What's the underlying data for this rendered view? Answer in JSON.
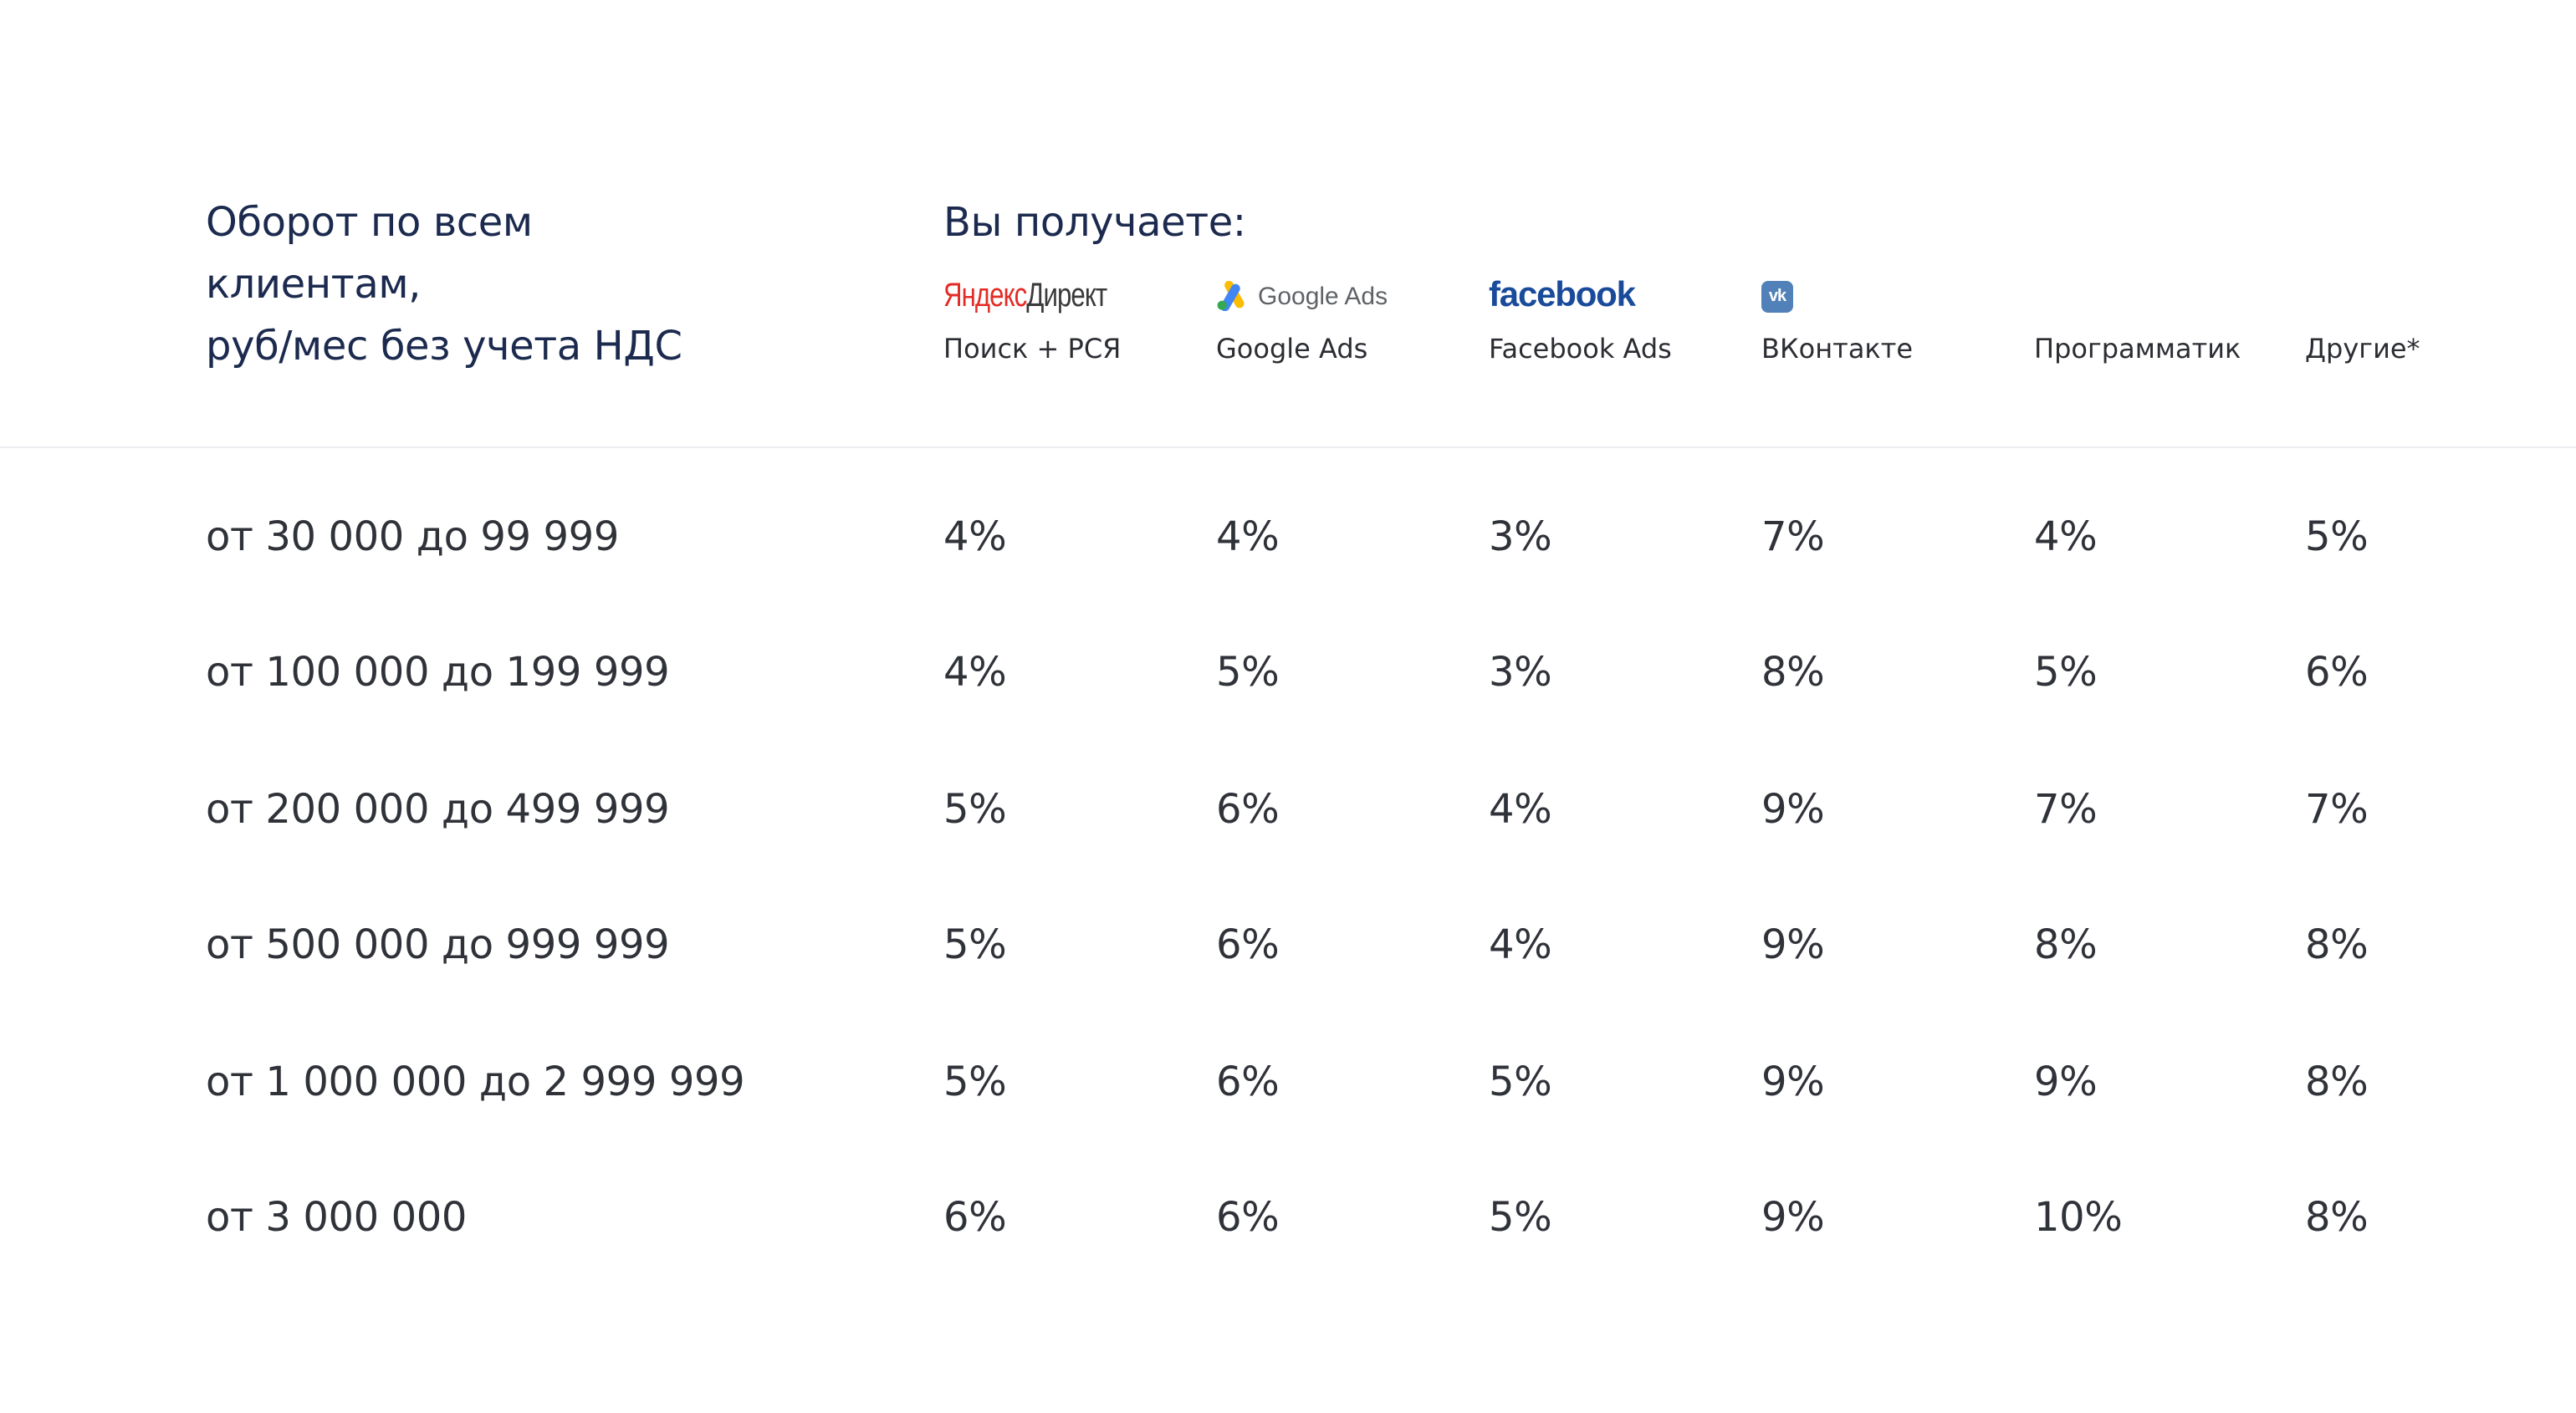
{
  "header": {
    "turnover_lines": [
      "Оборот по всем",
      "клиентам,",
      "руб/мес без учета НДС"
    ],
    "receive_title": "Вы получаете:"
  },
  "channels": [
    {
      "logo": "yandex-direct-logo",
      "logo_text_red": "Яндекс",
      "logo_text_gray": "Директ",
      "label": "Поиск + РСЯ"
    },
    {
      "logo": "google-ads-logo",
      "logo_text": "Google Ads",
      "label": "Google Ads"
    },
    {
      "logo": "facebook-logo",
      "logo_text": "facebook",
      "label": "Facebook Ads"
    },
    {
      "logo": "vk-icon",
      "logo_text": "vk",
      "label": "ВКонтакте"
    },
    {
      "logo": "",
      "label": "Программатик"
    },
    {
      "logo": "",
      "label": "Другие*"
    }
  ],
  "rows": [
    {
      "range": "от 30 000 до 99 999",
      "values": [
        "4%",
        "4%",
        "3%",
        "7%",
        "4%",
        "5%"
      ]
    },
    {
      "range": "от 100 000 до 199 999",
      "values": [
        "4%",
        "5%",
        "3%",
        "8%",
        "5%",
        "6%"
      ]
    },
    {
      "range": "от 200 000 до 499 999",
      "values": [
        "5%",
        "6%",
        "4%",
        "9%",
        "7%",
        "7%"
      ]
    },
    {
      "range": "от 500 000 до 999 999",
      "values": [
        "5%",
        "6%",
        "4%",
        "9%",
        "8%",
        "8%"
      ]
    },
    {
      "range": "от 1 000 000 до 2 999 999",
      "values": [
        "5%",
        "6%",
        "5%",
        "9%",
        "9%",
        "8%"
      ]
    },
    {
      "range": "от 3 000 000",
      "values": [
        "6%",
        "6%",
        "5%",
        "9%",
        "10%",
        "8%"
      ]
    }
  ],
  "colors": {
    "heading": "#1b2a4e",
    "text": "#2f3238",
    "yandex_red": "#e32b25",
    "facebook_blue": "#1a4b9b",
    "vk_blue": "#5181b8",
    "divider": "#eceef2"
  }
}
